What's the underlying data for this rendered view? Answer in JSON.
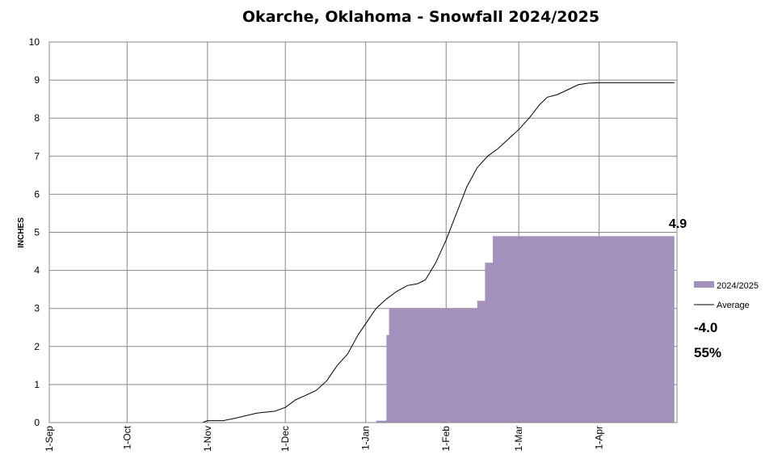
{
  "chart_data": {
    "type": "area",
    "title": "Okarche, Oklahoma - Snowfall 2024/2025",
    "ylabel": "INCHES",
    "xlabel": "",
    "ylim": [
      0,
      10
    ],
    "yticks": [
      0,
      1,
      2,
      3,
      4,
      5,
      6,
      7,
      8,
      9,
      10
    ],
    "xlim": [
      "1-Sep",
      "1-May"
    ],
    "xticks": [
      "1-Sep",
      "1-Oct",
      "1-Nov",
      "1-Dec",
      "1-Jan",
      "1-Feb",
      "1-Mar",
      "1-Apr"
    ],
    "grid": true,
    "legend_position": "right",
    "colors": {
      "season": "#a390bd",
      "average": "#000000"
    },
    "series": [
      {
        "name": "2024/2025",
        "kind": "step-area",
        "points": [
          [
            "1-Sep",
            0
          ],
          [
            "5-Jan",
            0
          ],
          [
            "5-Jan",
            0.05
          ],
          [
            "9-Jan",
            0.05
          ],
          [
            "9-Jan",
            2.3
          ],
          [
            "10-Jan",
            2.3
          ],
          [
            "10-Jan",
            3.0
          ],
          [
            "13-Feb",
            3.0
          ],
          [
            "13-Feb",
            3.2
          ],
          [
            "16-Feb",
            3.2
          ],
          [
            "16-Feb",
            4.2
          ],
          [
            "19-Feb",
            4.2
          ],
          [
            "19-Feb",
            4.9
          ],
          [
            "30-Apr",
            4.9
          ]
        ]
      },
      {
        "name": "Average",
        "kind": "line",
        "points": [
          [
            "1-Sep",
            0
          ],
          [
            "30-Oct",
            0
          ],
          [
            "1-Nov",
            0.05
          ],
          [
            "7-Nov",
            0.05
          ],
          [
            "12-Nov",
            0.12
          ],
          [
            "20-Nov",
            0.25
          ],
          [
            "27-Nov",
            0.3
          ],
          [
            "1-Dec",
            0.4
          ],
          [
            "5-Dec",
            0.6
          ],
          [
            "9-Dec",
            0.72
          ],
          [
            "13-Dec",
            0.85
          ],
          [
            "17-Dec",
            1.1
          ],
          [
            "21-Dec",
            1.5
          ],
          [
            "25-Dec",
            1.8
          ],
          [
            "29-Dec",
            2.3
          ],
          [
            "2-Jan",
            2.7
          ],
          [
            "5-Jan",
            3.0
          ],
          [
            "9-Jan",
            3.25
          ],
          [
            "13-Jan",
            3.45
          ],
          [
            "17-Jan",
            3.6
          ],
          [
            "21-Jan",
            3.65
          ],
          [
            "24-Jan",
            3.75
          ],
          [
            "28-Jan",
            4.2
          ],
          [
            "1-Feb",
            4.8
          ],
          [
            "5-Feb",
            5.5
          ],
          [
            "9-Feb",
            6.2
          ],
          [
            "13-Feb",
            6.7
          ],
          [
            "17-Feb",
            7.0
          ],
          [
            "21-Feb",
            7.2
          ],
          [
            "25-Feb",
            7.45
          ],
          [
            "1-Mar",
            7.7
          ],
          [
            "5-Mar",
            8.0
          ],
          [
            "9-Mar",
            8.35
          ],
          [
            "12-Mar",
            8.55
          ],
          [
            "16-Mar",
            8.62
          ],
          [
            "20-Mar",
            8.75
          ],
          [
            "24-Mar",
            8.88
          ],
          [
            "28-Mar",
            8.92
          ],
          [
            "1-Apr",
            8.93
          ],
          [
            "30-Apr",
            8.93
          ]
        ]
      }
    ],
    "annotations": {
      "season_total": "4.9",
      "departure": "-4.0",
      "percent_of_average": "55%"
    }
  }
}
